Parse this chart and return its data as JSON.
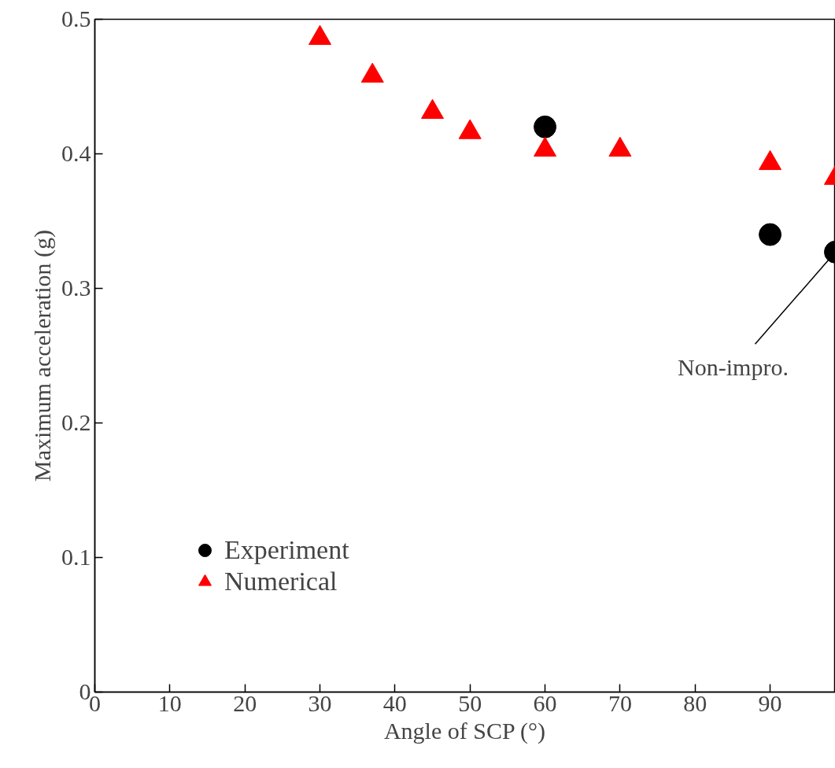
{
  "chart_data": {
    "type": "scatter",
    "xlabel": "Angle of SCP (°)",
    "ylabel": "Maximum acceleration (g)",
    "xlim": [
      0,
      98.7
    ],
    "ylim": [
      0,
      0.5
    ],
    "xticks": [
      0,
      10,
      20,
      30,
      40,
      50,
      60,
      70,
      80,
      90
    ],
    "yticks": [
      0,
      0.1,
      0.2,
      0.3,
      0.4,
      0.5
    ],
    "grid": false,
    "legend": "bottom left",
    "series": [
      {
        "name": "Experiment",
        "color": "#000000",
        "marker": "circle",
        "x": [
          60,
          90,
          98.7
        ],
        "values": [
          0.42,
          0.34,
          0.327
        ]
      },
      {
        "name": "Numerical",
        "color": "#ff0000",
        "marker": "triangle",
        "x": [
          30,
          37,
          45,
          50,
          60,
          70,
          90,
          98.7
        ],
        "values": [
          0.486,
          0.458,
          0.431,
          0.416,
          0.403,
          0.403,
          0.393,
          0.382
        ]
      }
    ],
    "annotations": [
      {
        "text": "Non-impro.",
        "x": 98.7,
        "y": 0.327
      }
    ]
  }
}
